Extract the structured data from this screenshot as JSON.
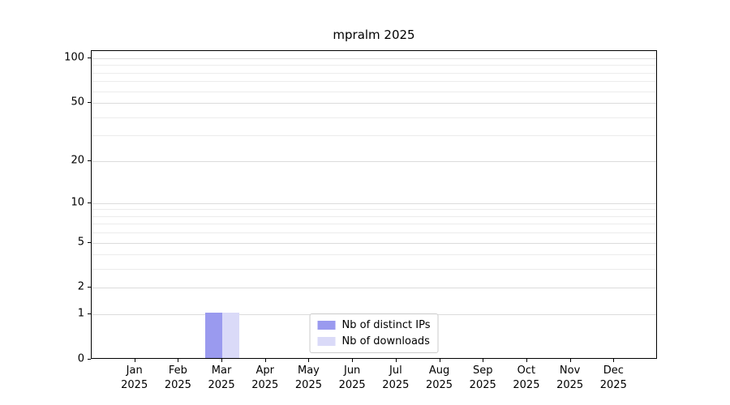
{
  "chart_data": {
    "type": "bar",
    "title": "mpralm 2025",
    "categories": [
      "Jan 2025",
      "Feb 2025",
      "Mar 2025",
      "Apr 2025",
      "May 2025",
      "Jun 2025",
      "Jul 2025",
      "Aug 2025",
      "Sep 2025",
      "Oct 2025",
      "Nov 2025",
      "Dec 2025"
    ],
    "series": [
      {
        "name": "Nb of distinct IPs",
        "color": "#9a9aef",
        "values": [
          0,
          0,
          1,
          0,
          0,
          0,
          0,
          0,
          0,
          0,
          0,
          0
        ]
      },
      {
        "name": "Nb of downloads",
        "color": "#dadaf8",
        "values": [
          0,
          0,
          1,
          0,
          0,
          0,
          0,
          0,
          0,
          0,
          0,
          0
        ]
      }
    ],
    "xlabel": "",
    "ylabel": "",
    "y_ticks": [
      0,
      1,
      2,
      5,
      10,
      20,
      50,
      100
    ],
    "y_minor_ticks": [
      3,
      4,
      6,
      7,
      8,
      9,
      30,
      40,
      60,
      70,
      80,
      90
    ],
    "ylim": [
      0,
      112
    ],
    "scale": "log1p",
    "grid": "horizontal",
    "legend_position": "lower center"
  }
}
